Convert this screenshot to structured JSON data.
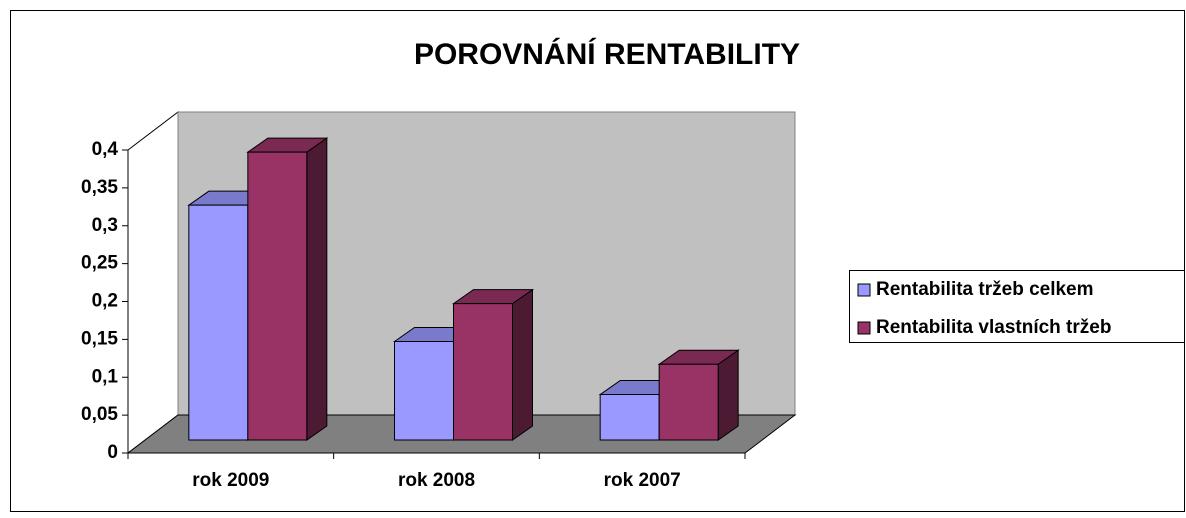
{
  "chart_data": {
    "type": "bar3d",
    "title": "POROVNÁNÍ RENTABILITY",
    "categories": [
      "rok 2009",
      "rok 2008",
      "rok 2007"
    ],
    "series": [
      {
        "name": "Rentabilita tržeb celkem",
        "color": "#9999ff",
        "values": [
          0.31,
          0.13,
          0.06
        ]
      },
      {
        "name": "Rentabilita vlastních tržeb",
        "color": "#993366",
        "values": [
          0.38,
          0.18,
          0.1
        ]
      }
    ],
    "ylim": [
      0,
      0.4
    ],
    "yticks": [
      0,
      {
        "value": 0.05,
        "label": "0,05"
      },
      {
        "value": 0.1,
        "label": "0,1"
      },
      {
        "value": 0.15,
        "label": "0,15"
      },
      {
        "value": 0.2,
        "label": "0,2"
      },
      {
        "value": 0.25,
        "label": "0,25"
      },
      {
        "value": 0.3,
        "label": "0,3"
      },
      {
        "value": 0.35,
        "label": "0,35"
      },
      {
        "value": 0.4,
        "label": "0,4"
      }
    ],
    "legend": "right"
  }
}
